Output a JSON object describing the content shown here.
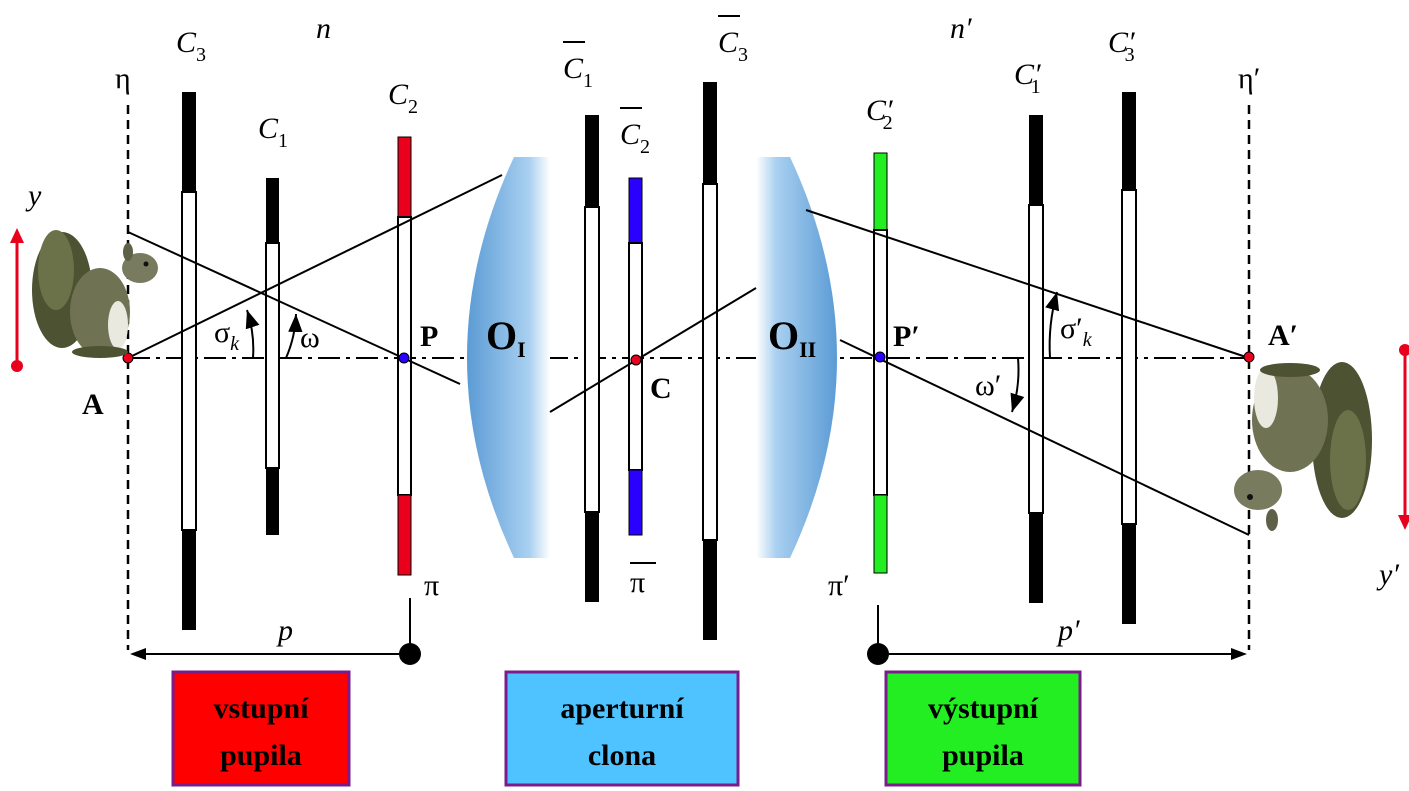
{
  "labels": {
    "eta": "η",
    "eta_prime": "η′",
    "n": "n",
    "n_prime": "n′",
    "y": "y",
    "y_prime": "y′",
    "A": "A",
    "A_prime": "A′",
    "P": "P",
    "P_prime": "P′",
    "C": "C",
    "O1": "O",
    "O1_sub": "I",
    "O2": "O",
    "O2_sub": "II",
    "pi": "π",
    "pi_bar": "π",
    "pi_prime": "π′",
    "p": "p",
    "p_prime": "p′",
    "sigma_k": "σ",
    "sigma_k_sub": "k",
    "sigma_k_prime": "σ′",
    "sigma_k_prime_sub": "k",
    "omega": "ω",
    "omega_prime": "ω′",
    "C3": "C",
    "C3_sub": "3",
    "C1": "C",
    "C1_sub": "1",
    "C2": "C",
    "C2_sub": "2",
    "C1_bar": "C",
    "C1_bar_sub": "1",
    "C2_bar": "C",
    "C2_bar_sub": "2",
    "C3_bar": "C",
    "C3_bar_sub": "3",
    "C2_prime": "C′",
    "C2_prime_sub": "2",
    "C1_prime": "C′",
    "C1_prime_sub": "1",
    "C3_prime": "C′",
    "C3_prime_sub": "3"
  },
  "boxes": {
    "entrance": {
      "line1": "vstupní",
      "line2": "pupila",
      "color": "#ff0000"
    },
    "aperture": {
      "line1": "aperturní",
      "line2": "clona",
      "color": "#4fc3ff"
    },
    "exit": {
      "line1": "výstupní",
      "line2": "pupila",
      "color": "#22ee22"
    }
  },
  "colors": {
    "entrance_pupil": "#e8001c",
    "aperture_stop": "#2a00ff",
    "exit_pupil": "#22ee22",
    "lens": "#5b9bd5",
    "arrow": "#e8001c",
    "box_border": "#7a1c8c"
  },
  "icons": {
    "object": "squirrel-icon",
    "image": "inverted-squirrel-icon"
  }
}
